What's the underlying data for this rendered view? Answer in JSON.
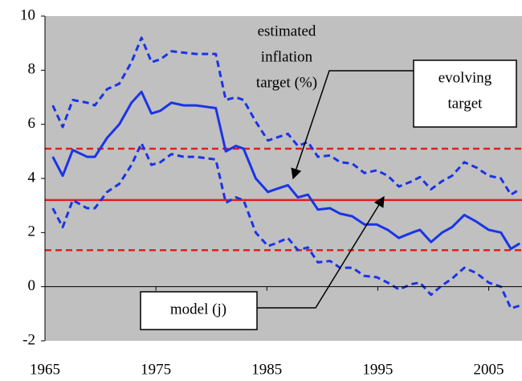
{
  "chart_data": {
    "type": "line",
    "x": [
      1965.7,
      1966.6,
      1967.5,
      1968.8,
      1969.5,
      1970.6,
      1971.7,
      1972.8,
      1973.7,
      1974.6,
      1975.4,
      1976.4,
      1977.5,
      1978.6,
      1980.4,
      1981.3,
      1982.2,
      1982.9,
      1984.0,
      1985.1,
      1985.8,
      1986.9,
      1987.8,
      1988.7,
      1989.6,
      1990.7,
      1991.6,
      1992.7,
      1993.8,
      1994.9,
      1995.9,
      1996.9,
      1998.1,
      1998.8,
      1999.8,
      2000.8,
      2001.7,
      2002.8,
      2003.9,
      2005.0,
      2006.1,
      2007.0,
      2007.8
    ],
    "series": [
      {
        "color": "#1a34e8",
        "style": "solid",
        "values": [
          4.8,
          4.1,
          5.05,
          4.8,
          4.8,
          5.5,
          6.0,
          6.8,
          7.2,
          6.4,
          6.5,
          6.8,
          6.7,
          6.7,
          6.6,
          5.0,
          5.2,
          5.1,
          4.0,
          3.5,
          3.6,
          3.75,
          3.3,
          3.4,
          2.85,
          2.9,
          2.7,
          2.6,
          2.3,
          2.3,
          2.1,
          1.8,
          2.0,
          2.1,
          1.65,
          2.0,
          2.2,
          2.65,
          2.4,
          2.1,
          2.0,
          1.4,
          1.6
        ]
      },
      {
        "color": "#1a34e8",
        "style": "dashed",
        "values": [
          6.7,
          5.9,
          6.9,
          6.8,
          6.7,
          7.3,
          7.5,
          8.3,
          9.2,
          8.3,
          8.4,
          8.7,
          8.65,
          8.6,
          8.6,
          6.9,
          7.0,
          6.9,
          6.1,
          5.4,
          5.5,
          5.65,
          5.2,
          5.35,
          4.8,
          4.85,
          4.6,
          4.55,
          4.2,
          4.3,
          4.1,
          3.7,
          3.9,
          4.05,
          3.6,
          3.9,
          4.1,
          4.6,
          4.4,
          4.1,
          4.0,
          3.4,
          3.6
        ]
      },
      {
        "color": "#1a34e8",
        "style": "dashed",
        "values": [
          2.9,
          2.2,
          3.2,
          2.9,
          2.9,
          3.5,
          3.8,
          4.5,
          5.3,
          4.5,
          4.6,
          4.9,
          4.8,
          4.8,
          4.7,
          3.1,
          3.3,
          3.2,
          2.0,
          1.5,
          1.6,
          1.8,
          1.35,
          1.45,
          0.9,
          0.95,
          0.7,
          0.7,
          0.4,
          0.35,
          0.15,
          -0.1,
          0.1,
          0.15,
          -0.3,
          0.05,
          0.3,
          0.7,
          0.5,
          0.15,
          0.0,
          -0.8,
          -0.7
        ]
      }
    ],
    "hlines": [
      {
        "value": 3.2,
        "color": "#e02020",
        "style": "solid"
      },
      {
        "value": 5.1,
        "color": "#e02020",
        "style": "dashed"
      },
      {
        "value": 1.35,
        "color": "#e02020",
        "style": "dashed"
      }
    ],
    "annotations": [
      {
        "lines": [
          "estimated",
          "inflation",
          "target (%)"
        ]
      },
      {
        "lines": [
          "evolving",
          "target"
        ]
      },
      {
        "lines": [
          "model (j)"
        ]
      }
    ],
    "xlim": [
      1965,
      2008
    ],
    "xticks": [
      1965,
      1975,
      1985,
      1995,
      2005
    ],
    "ylim": [
      -2,
      10
    ],
    "yticks": [
      -2,
      0,
      2,
      4,
      6,
      8,
      10
    ],
    "background": "#c0c0c0",
    "grid": false
  }
}
